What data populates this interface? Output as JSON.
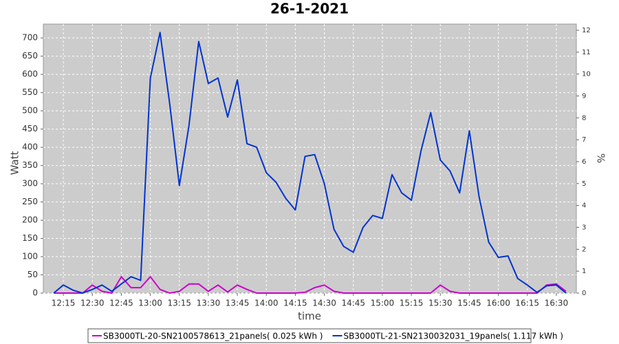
{
  "chart_data": {
    "type": "line",
    "title": "26-1-2021",
    "xlabel": "time",
    "ylabel": "Watt",
    "y2label": "%",
    "categories": [
      null,
      null,
      "12:15",
      null,
      null,
      "12:30",
      null,
      null,
      "12:45",
      null,
      null,
      "13:00",
      null,
      null,
      "13:15",
      null,
      null,
      "13:30",
      null,
      null,
      "13:45",
      null,
      null,
      "14:00",
      null,
      null,
      "14:15",
      null,
      null,
      "14:30",
      null,
      null,
      "14:45",
      null,
      null,
      "15:00",
      null,
      null,
      "15:15",
      null,
      null,
      "15:30",
      null,
      null,
      "15:45",
      null,
      null,
      "16:00",
      null,
      null,
      "16:15",
      null,
      null,
      "16:30",
      null,
      null
    ],
    "series": [
      {
        "name": "SB3000TL-20-SN2100578613_21panels( 0.025 kWh  )",
        "color": "#cc00cc",
        "values": [
          null,
          0,
          0,
          0,
          0,
          22,
          5,
          0,
          45,
          15,
          15,
          45,
          10,
          0,
          5,
          25,
          25,
          5,
          22,
          3,
          22,
          10,
          0,
          0,
          0,
          0,
          0,
          2,
          15,
          22,
          5,
          0,
          0,
          0,
          0,
          0,
          0,
          0,
          0,
          0,
          0,
          22,
          5,
          0,
          0,
          0,
          0,
          0,
          0,
          0,
          0,
          0,
          22,
          25,
          5,
          null
        ]
      },
      {
        "name": "SB3000TL-21-SN2130032031_19panels( 1.117 kWh  )",
        "color": "#0033cc",
        "values": [
          null,
          0,
          22,
          8,
          0,
          10,
          22,
          5,
          25,
          45,
          35,
          590,
          715,
          520,
          295,
          460,
          690,
          575,
          590,
          483,
          585,
          410,
          400,
          330,
          304,
          260,
          228,
          375,
          380,
          300,
          175,
          128,
          112,
          180,
          213,
          205,
          325,
          275,
          255,
          390,
          495,
          365,
          335,
          275,
          445,
          265,
          140,
          98,
          102,
          40,
          22,
          2,
          20,
          22,
          0,
          null
        ]
      }
    ],
    "ylim": [
      0,
      738
    ],
    "yticks": [
      0,
      50,
      100,
      150,
      200,
      250,
      300,
      350,
      400,
      450,
      500,
      550,
      600,
      650,
      700
    ],
    "y2lim": [
      0,
      12.28
    ],
    "y2ticks": [
      0,
      1,
      2,
      3,
      4,
      5,
      6,
      7,
      8,
      9,
      10,
      11,
      12
    ],
    "grid": true,
    "legend": "bottom"
  }
}
